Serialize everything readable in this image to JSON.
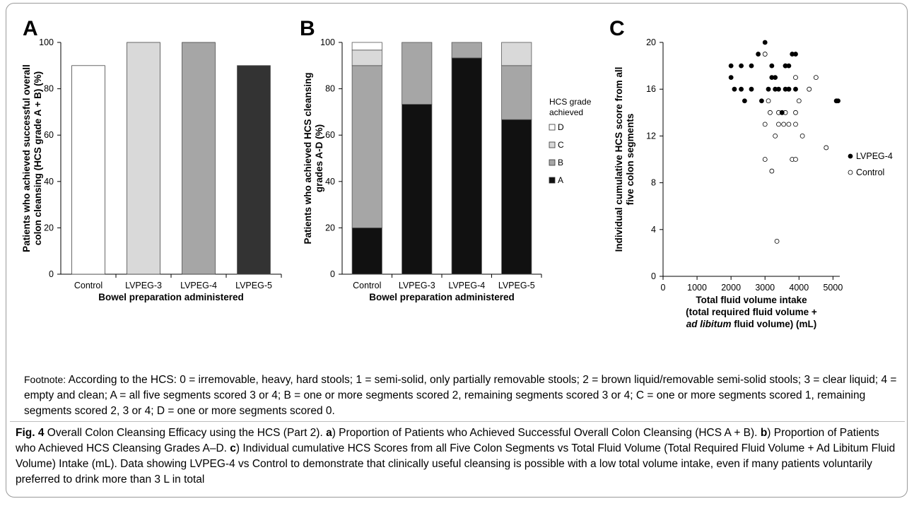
{
  "chart_data": [
    {
      "id": "A",
      "type": "bar",
      "panel_label": "A",
      "categories": [
        "Control",
        "LVPEG-3",
        "LVPEG-4",
        "LVPEG-5"
      ],
      "values": [
        90,
        100,
        100,
        90
      ],
      "bar_colors": [
        "#ffffff",
        "#d9d9d9",
        "#a6a6a6",
        "#333333"
      ],
      "ylabel_lines": [
        "Patients who achieved successful overall",
        "colon cleansing (HCS grade A + B) (%)"
      ],
      "xlabel": "Bowel preparation administered",
      "ylim": [
        0,
        100
      ],
      "yticks": [
        0,
        20,
        40,
        60,
        80,
        100
      ]
    },
    {
      "id": "B",
      "type": "bar",
      "stacked": true,
      "panel_label": "B",
      "categories": [
        "Control",
        "LVPEG-3",
        "LVPEG-4",
        "LVPEG-5"
      ],
      "series": [
        {
          "name": "A",
          "color": "#111111",
          "values": [
            20,
            73.3,
            93.3,
            66.7
          ]
        },
        {
          "name": "B",
          "color": "#a6a6a6",
          "values": [
            70,
            26.7,
            6.7,
            23.3
          ]
        },
        {
          "name": "C",
          "color": "#d9d9d9",
          "values": [
            6.7,
            0,
            0,
            10
          ]
        },
        {
          "name": "D",
          "color": "#ffffff",
          "values": [
            3.3,
            0,
            0,
            0
          ]
        }
      ],
      "legend_title_lines": [
        "HCS grade",
        "achieved"
      ],
      "legend_order": [
        "D",
        "C",
        "B",
        "A"
      ],
      "legend_position": "right",
      "ylabel_lines": [
        "Patients who achieved HCS cleansing",
        "grades A-D (%)"
      ],
      "xlabel": "Bowel preparation administered",
      "ylim": [
        0,
        100
      ],
      "yticks": [
        0,
        20,
        40,
        60,
        80,
        100
      ]
    },
    {
      "id": "C",
      "type": "scatter",
      "panel_label": "C",
      "series": [
        {
          "name": "LVPEG-4",
          "marker": "filled",
          "points": [
            [
              2000,
              18
            ],
            [
              2000,
              17
            ],
            [
              2100,
              16
            ],
            [
              2300,
              16
            ],
            [
              2300,
              18
            ],
            [
              2400,
              15
            ],
            [
              2600,
              16
            ],
            [
              2600,
              18
            ],
            [
              2800,
              19
            ],
            [
              2900,
              15
            ],
            [
              3000,
              20
            ],
            [
              3100,
              16
            ],
            [
              3200,
              18
            ],
            [
              3200,
              17
            ],
            [
              3300,
              17
            ],
            [
              3300,
              16
            ],
            [
              3400,
              16
            ],
            [
              3500,
              14
            ],
            [
              3600,
              16
            ],
            [
              3600,
              18
            ],
            [
              3700,
              16
            ],
            [
              3700,
              18
            ],
            [
              3800,
              19
            ],
            [
              3900,
              19
            ],
            [
              3900,
              16
            ],
            [
              5100,
              15
            ],
            [
              5150,
              15
            ]
          ]
        },
        {
          "name": "Control",
          "marker": "open",
          "points": [
            [
              3000,
              19
            ],
            [
              3000,
              13
            ],
            [
              3000,
              10
            ],
            [
              3100,
              15
            ],
            [
              3150,
              14
            ],
            [
              3200,
              9
            ],
            [
              3300,
              12
            ],
            [
              3350,
              3
            ],
            [
              3400,
              14
            ],
            [
              3400,
              13
            ],
            [
              3500,
              14
            ],
            [
              3550,
              13
            ],
            [
              3600,
              18
            ],
            [
              3600,
              14
            ],
            [
              3700,
              13
            ],
            [
              3700,
              16
            ],
            [
              3800,
              10
            ],
            [
              3900,
              17
            ],
            [
              3900,
              14
            ],
            [
              3900,
              13
            ],
            [
              3900,
              10
            ],
            [
              4000,
              15
            ],
            [
              4100,
              12
            ],
            [
              4300,
              16
            ],
            [
              4500,
              17
            ],
            [
              4800,
              11
            ],
            [
              5100,
              15
            ]
          ]
        }
      ],
      "legend_order": [
        "LVPEG-4",
        "Control"
      ],
      "legend_position": "right",
      "ylabel_lines": [
        "Individual cumulative HCS score from all",
        "five colon segments"
      ],
      "xlabel_lines": [
        "Total fluid volume intake",
        "(total required fluid volume +"
      ],
      "xlabel_line3_italic": "ad libitum",
      "xlabel_line3_rest": " fluid volume) (mL)",
      "xlim": [
        0,
        5200
      ],
      "ylim": [
        0,
        20
      ],
      "xticks": [
        0,
        1000,
        2000,
        3000,
        4000,
        5000
      ],
      "yticks": [
        0,
        4,
        8,
        12,
        16,
        20
      ]
    }
  ],
  "footnote": {
    "prefix": "Footnote:",
    "text": "According to the HCS: 0 = irremovable, heavy, hard stools; 1 = semi-solid, only partially removable stools; 2 = brown liquid/removable semi-solid stools; 3 = clear liquid; 4 = empty and clean; A = all five segments scored 3 or 4; B = one or more segments scored 2, remaining segments scored 3 or 4; C = one or more segments scored 1, remaining segments scored 2, 3 or 4; D = one or more segments scored 0."
  },
  "caption": {
    "fig_label": "Fig. 4",
    "title": "Overall Colon Cleansing Efficacy using the HCS (Part 2).",
    "a_label": "a",
    "a_text": ") Proportion of Patients who Achieved Successful Overall Colon Cleansing (HCS A + B).",
    "b_label": "b",
    "b_text": ") Proportion of Patients who Achieved HCS Cleansing Grades A–D.",
    "c_label": "c",
    "c_text": ") Individual cumulative HCS Scores from all Five Colon Segments vs Total Fluid Volume (Total Required Fluid Volume + Ad Libitum Fluid Volume) Intake (mL). Data showing LVPEG-4 vs Control to demonstrate that clinically useful cleansing is possible with a low total volume intake, even if many patients voluntarily preferred to drink more than 3 L in total"
  }
}
